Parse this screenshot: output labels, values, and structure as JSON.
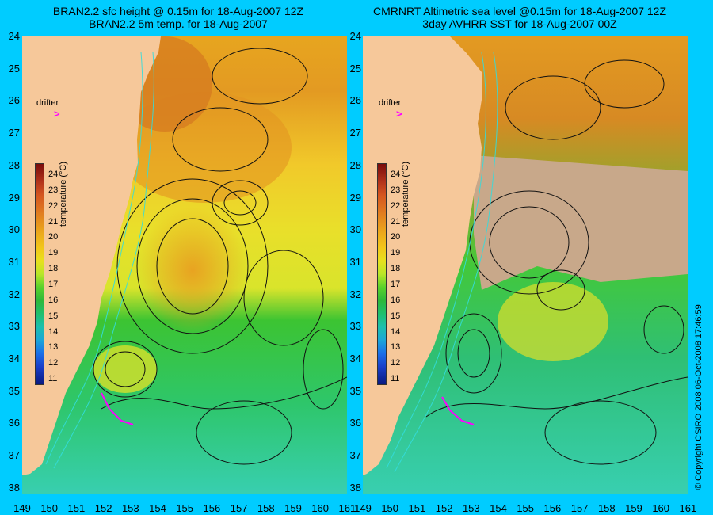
{
  "left_panel": {
    "title_line1": "BRAN2.2 sfc height @ 0.15m for 18-Aug-2007 12Z",
    "title_line2": "BRAN2.2 5m temp. for 18-Aug-2007",
    "drifter_label": "drifter",
    "drifter_mark": ">"
  },
  "right_panel": {
    "title_line1": "CMRNRT Altimetric sea level  @0.15m  for 18-Aug-2007 12Z",
    "title_line2": "3day AVHRR SST for 18-Aug-2007 00Z",
    "drifter_label": "drifter",
    "drifter_mark": ">"
  },
  "axes": {
    "y_ticks": [
      "24",
      "25",
      "26",
      "27",
      "28",
      "29",
      "30",
      "31",
      "32",
      "33",
      "34",
      "35",
      "36",
      "37",
      "38"
    ],
    "x_ticks": [
      "149",
      "150",
      "151",
      "152",
      "153",
      "154",
      "155",
      "156",
      "157",
      "158",
      "159",
      "160",
      "161"
    ]
  },
  "colorbar": {
    "label": "temperature (°C)",
    "ticks": [
      "24",
      "23",
      "22",
      "21",
      "20",
      "19",
      "18",
      "17",
      "16",
      "15",
      "14",
      "13",
      "12",
      "11"
    ],
    "ramp_colors": [
      "#7a0c0c",
      "#d4551f",
      "#eaa31c",
      "#e8e01e",
      "#59d12c",
      "#1bbfae",
      "#1a6fe8",
      "#0a1a80"
    ]
  },
  "colors": {
    "background": "#00ccff",
    "land": "#f6c89a",
    "cloud": "#c8a88a",
    "contour": "#111111",
    "bathymetry": "#33dddd",
    "drifter": "#ff00ff"
  },
  "copyright": "© Copyright CSIRO 2008    06-Oct-2008 17:46:59"
}
